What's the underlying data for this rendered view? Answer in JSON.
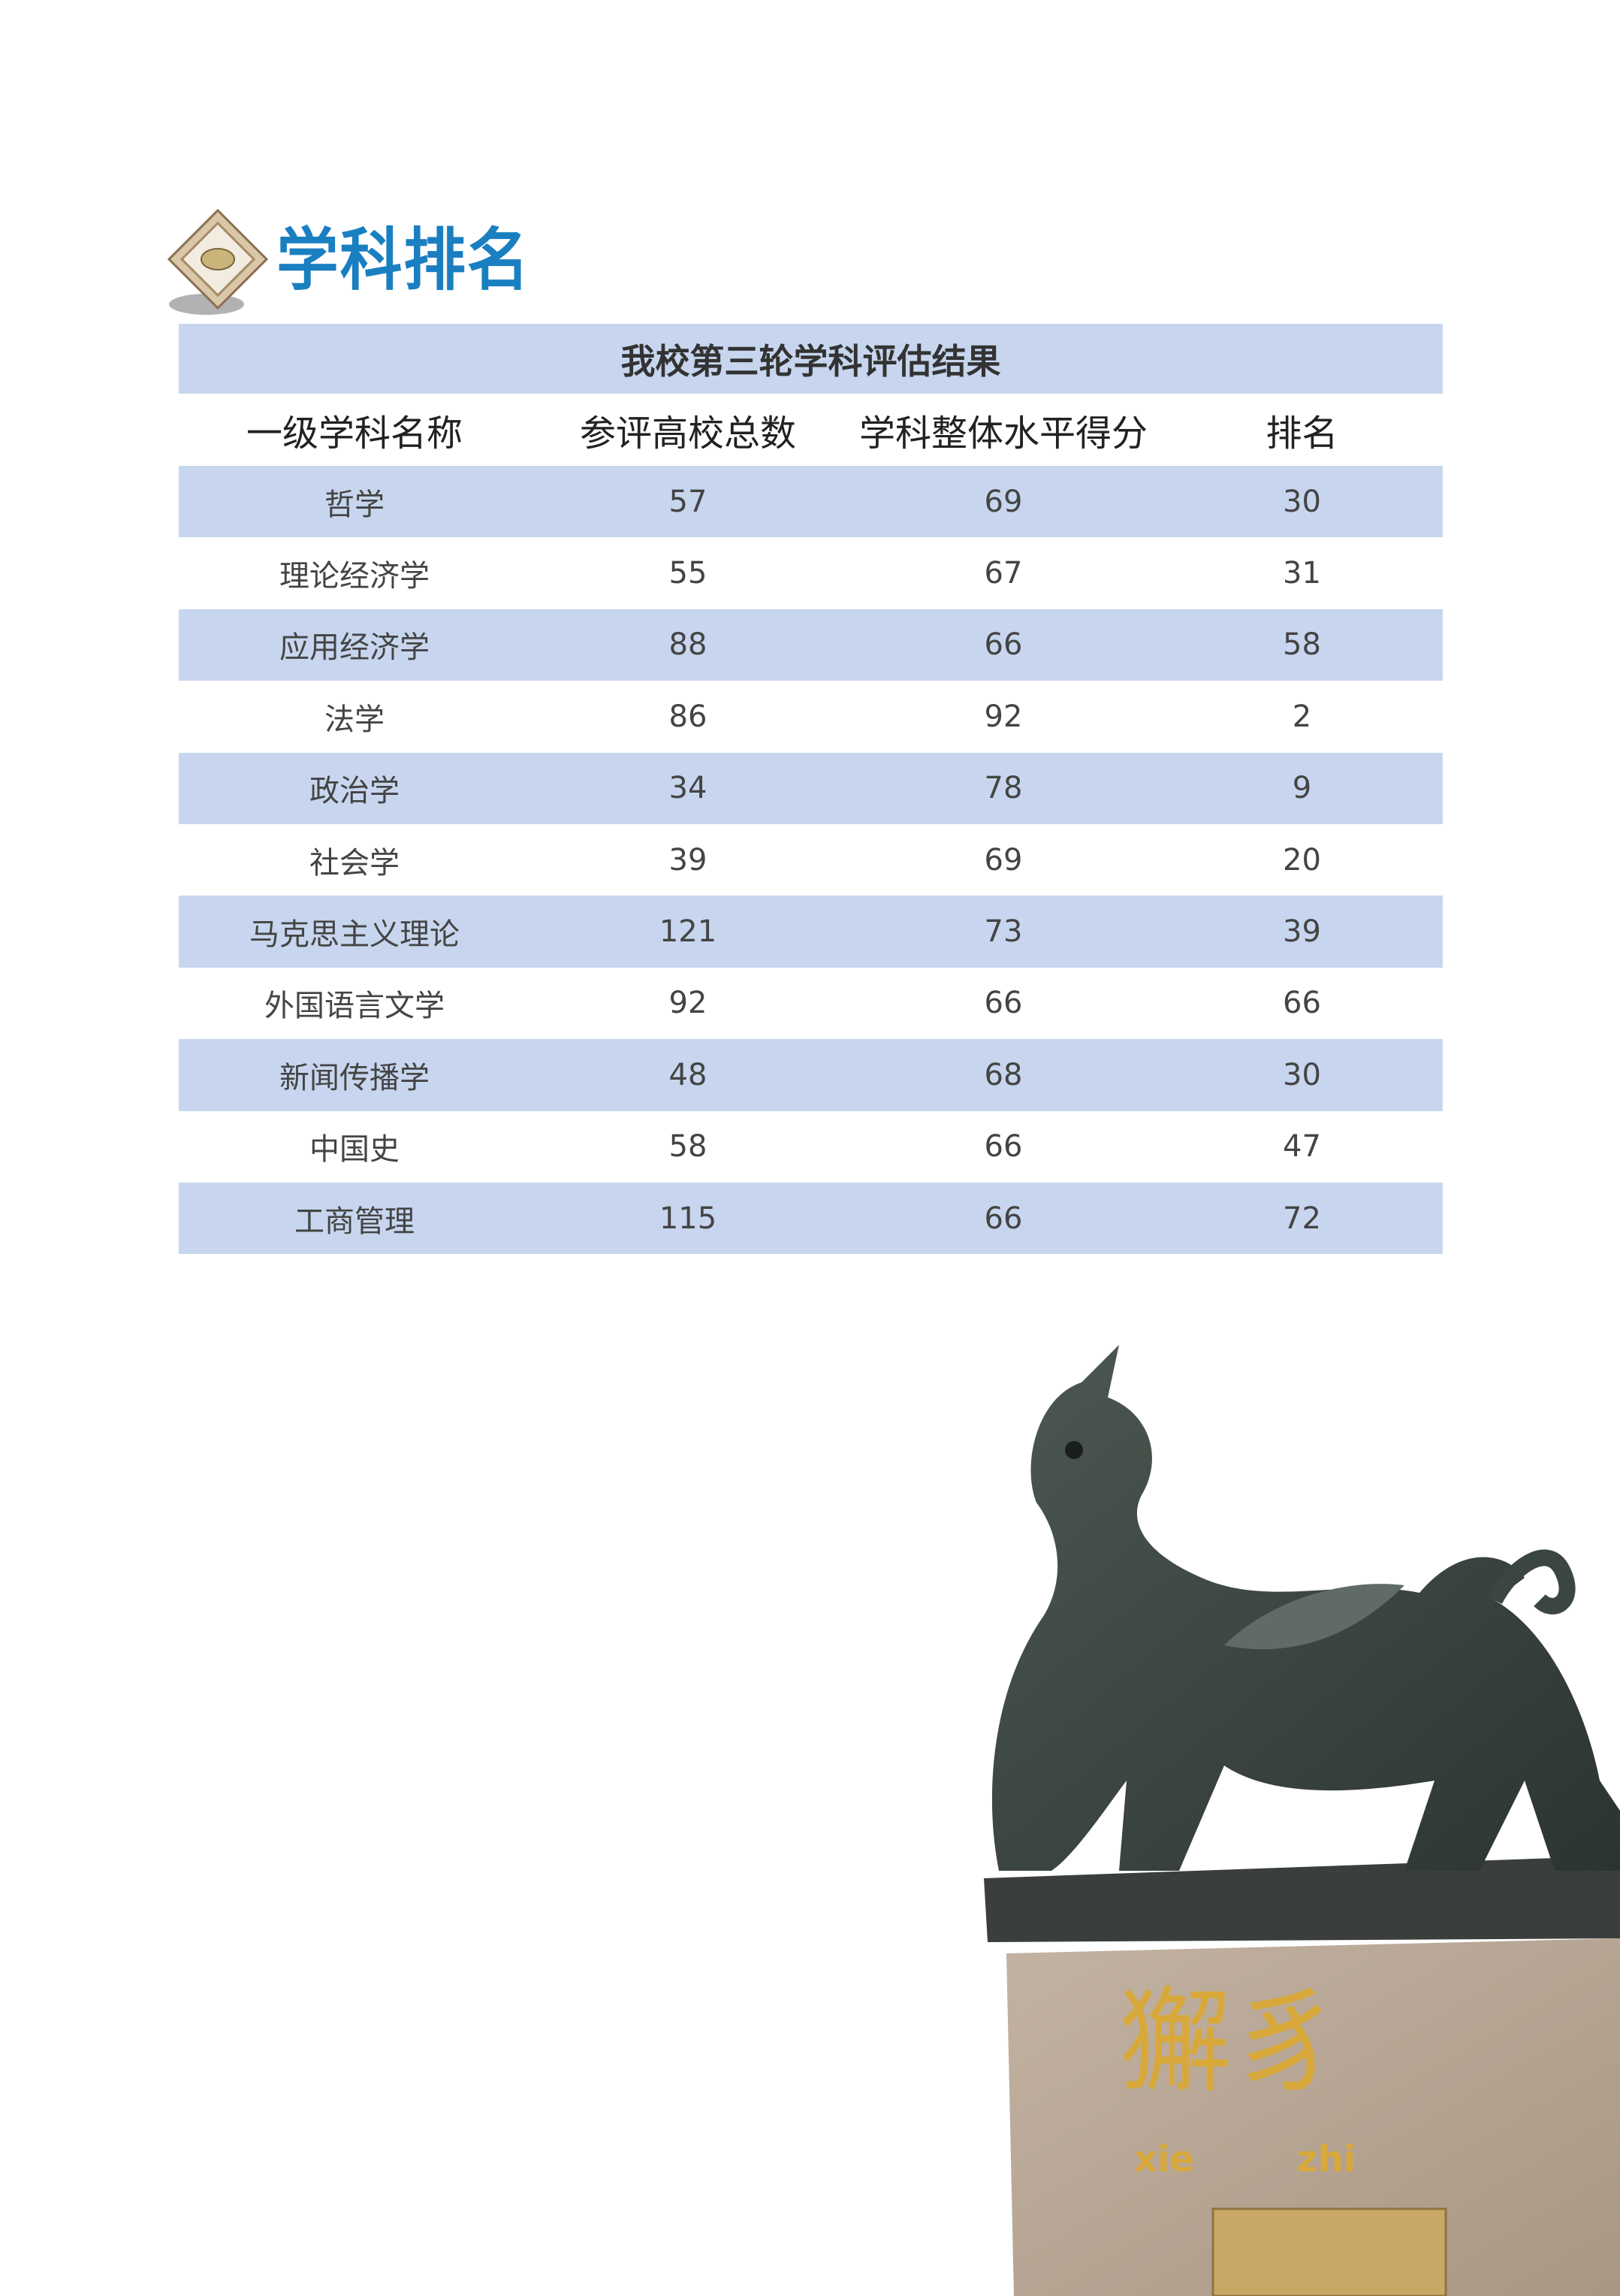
{
  "page": {
    "title": "学科排名",
    "logo_icon": "diamond-emblem-icon"
  },
  "table": {
    "caption": "我校第三轮学科评估结果",
    "headers": [
      "一级学科名称",
      "参评高校总数",
      "学科整体水平得分",
      "排名"
    ],
    "rows": [
      [
        "哲学",
        "57",
        "69",
        "30"
      ],
      [
        "理论经济学",
        "55",
        "67",
        "31"
      ],
      [
        "应用经济学",
        "88",
        "66",
        "58"
      ],
      [
        "法学",
        "86",
        "92",
        "2"
      ],
      [
        "政治学",
        "34",
        "78",
        "9"
      ],
      [
        "社会学",
        "39",
        "69",
        "20"
      ],
      [
        "马克思主义理论",
        "121",
        "73",
        "39"
      ],
      [
        "外国语言文学",
        "92",
        "66",
        "66"
      ],
      [
        "新闻传播学",
        "48",
        "68",
        "30"
      ],
      [
        "中国史",
        "58",
        "66",
        "47"
      ],
      [
        "工商管理",
        "115",
        "66",
        "72"
      ]
    ],
    "stripe_color": "#c7d6ee"
  },
  "photo": {
    "subject": "xiezhi-statue",
    "inscription": "獬豸",
    "pinyin": "xie zhi"
  },
  "colors": {
    "title": "#1a7fc1"
  }
}
